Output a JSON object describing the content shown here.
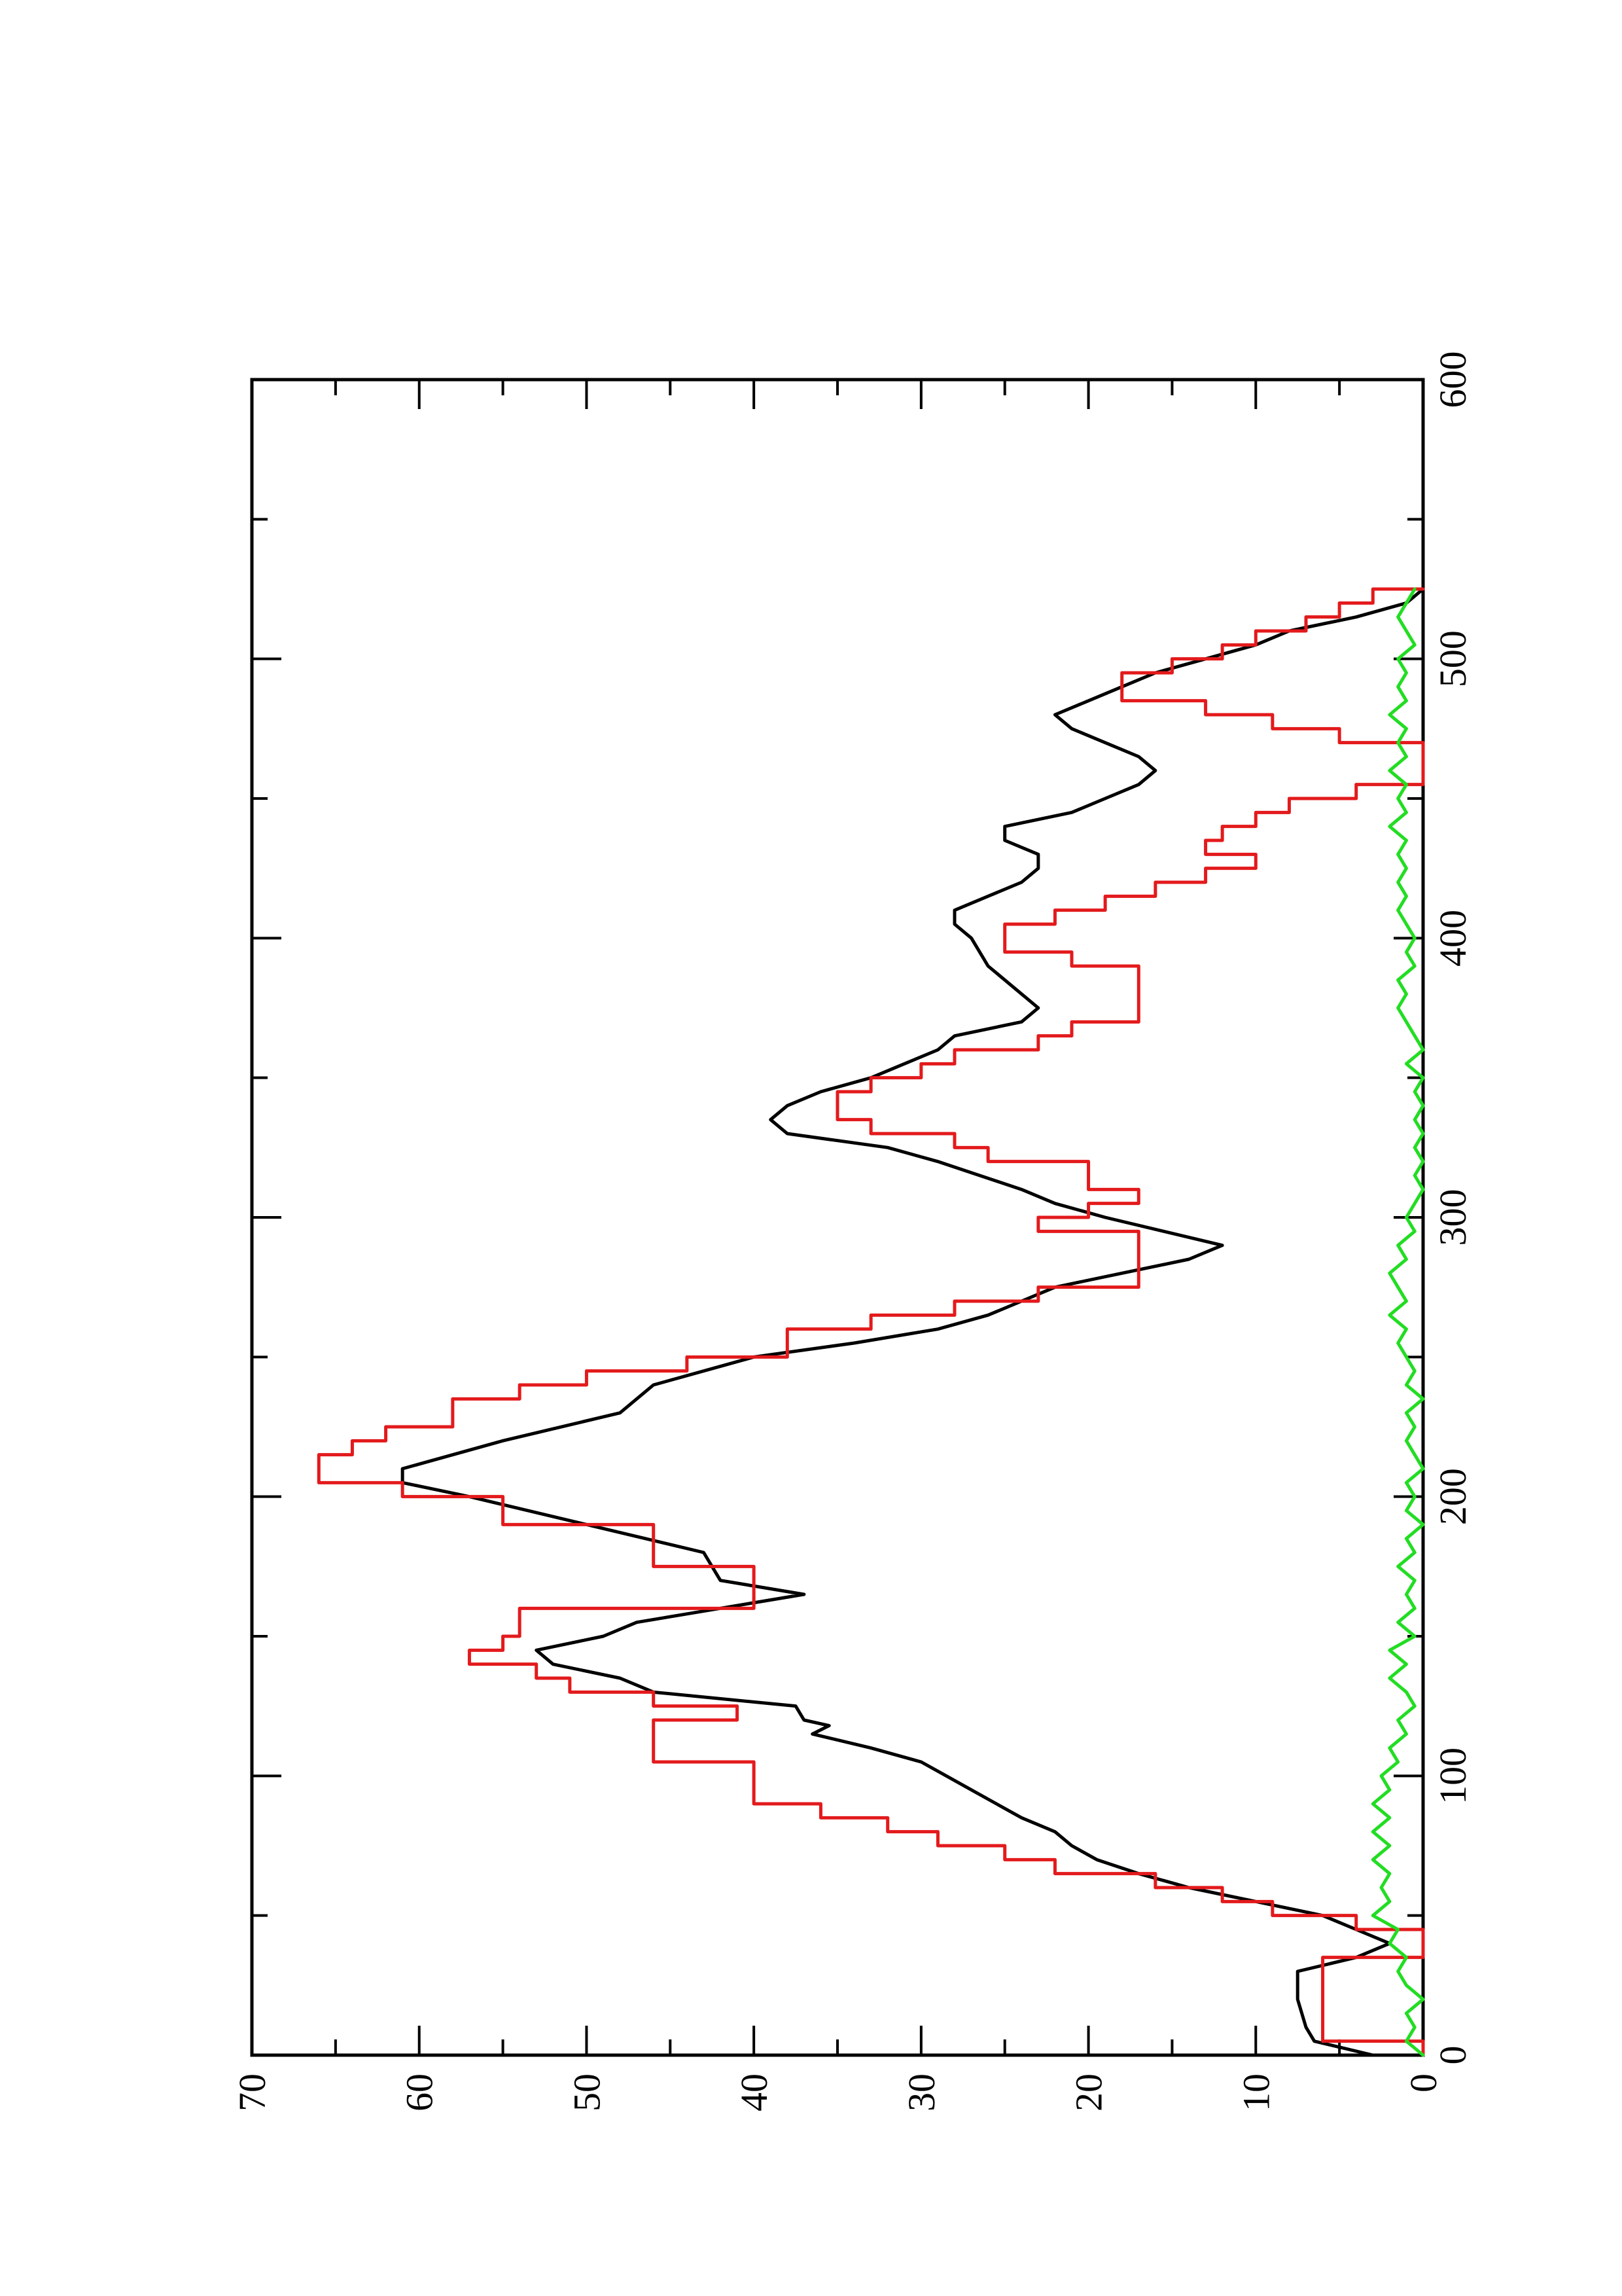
{
  "chart_data": {
    "type": "line",
    "title": "",
    "xlabel": "",
    "ylabel": "",
    "orientation": "rotated-90-ccw",
    "xlim": [
      0,
      600
    ],
    "ylim": [
      0,
      70
    ],
    "x_ticks": [
      "0",
      "100",
      "200",
      "300",
      "400",
      "500",
      "600"
    ],
    "y_ticks": [
      "0",
      "10",
      "20",
      "30",
      "40",
      "50",
      "60",
      "70"
    ],
    "grid": false,
    "legend": "none",
    "series": [
      {
        "color": "#000000",
        "style": "smooth",
        "points": [
          [
            0,
            3
          ],
          [
            5,
            6.5
          ],
          [
            10,
            7
          ],
          [
            20,
            7.5
          ],
          [
            30,
            7.5
          ],
          [
            35,
            4
          ],
          [
            40,
            2
          ],
          [
            45,
            4
          ],
          [
            50,
            6
          ],
          [
            55,
            10
          ],
          [
            60,
            14
          ],
          [
            65,
            17
          ],
          [
            70,
            19.5
          ],
          [
            75,
            21
          ],
          [
            80,
            22
          ],
          [
            85,
            24
          ],
          [
            90,
            25.5
          ],
          [
            95,
            27
          ],
          [
            100,
            28.5
          ],
          [
            105,
            30
          ],
          [
            110,
            33
          ],
          [
            115,
            36.5
          ],
          [
            118,
            35.5
          ],
          [
            120,
            37
          ],
          [
            125,
            37.5
          ],
          [
            130,
            46
          ],
          [
            135,
            48
          ],
          [
            140,
            52
          ],
          [
            145,
            53
          ],
          [
            150,
            49
          ],
          [
            155,
            47
          ],
          [
            160,
            42
          ],
          [
            165,
            37
          ],
          [
            170,
            42
          ],
          [
            180,
            43
          ],
          [
            190,
            50
          ],
          [
            200,
            57
          ],
          [
            205,
            61
          ],
          [
            210,
            61
          ],
          [
            215,
            58
          ],
          [
            220,
            55
          ],
          [
            230,
            48
          ],
          [
            240,
            46
          ],
          [
            250,
            40
          ],
          [
            255,
            34
          ],
          [
            260,
            29
          ],
          [
            265,
            26
          ],
          [
            270,
            24
          ],
          [
            275,
            22
          ],
          [
            280,
            18
          ],
          [
            285,
            14
          ],
          [
            290,
            12
          ],
          [
            300,
            19
          ],
          [
            305,
            22
          ],
          [
            310,
            24
          ],
          [
            320,
            29
          ],
          [
            325,
            32
          ],
          [
            330,
            38
          ],
          [
            335,
            39
          ],
          [
            340,
            38
          ],
          [
            345,
            36
          ],
          [
            350,
            33
          ],
          [
            355,
            31
          ],
          [
            360,
            29
          ],
          [
            365,
            28
          ],
          [
            370,
            24
          ],
          [
            375,
            23
          ],
          [
            380,
            24
          ],
          [
            385,
            25
          ],
          [
            390,
            26
          ],
          [
            400,
            27
          ],
          [
            405,
            28
          ],
          [
            410,
            28
          ],
          [
            415,
            26
          ],
          [
            420,
            24
          ],
          [
            425,
            23
          ],
          [
            430,
            23
          ],
          [
            435,
            25
          ],
          [
            440,
            25
          ],
          [
            445,
            21
          ],
          [
            450,
            19
          ],
          [
            455,
            17
          ],
          [
            460,
            16
          ],
          [
            465,
            17
          ],
          [
            470,
            19
          ],
          [
            475,
            21
          ],
          [
            480,
            22
          ],
          [
            485,
            20
          ],
          [
            490,
            18
          ],
          [
            495,
            16
          ],
          [
            500,
            13
          ],
          [
            505,
            10
          ],
          [
            510,
            8
          ],
          [
            515,
            4
          ],
          [
            520,
            1
          ],
          [
            525,
            0
          ]
        ]
      },
      {
        "color": "#e31a1c",
        "style": "step",
        "points": [
          [
            0,
            0
          ],
          [
            5,
            6
          ],
          [
            30,
            6
          ],
          [
            35,
            0
          ],
          [
            40,
            0
          ],
          [
            45,
            4
          ],
          [
            50,
            9
          ],
          [
            55,
            12
          ],
          [
            60,
            16
          ],
          [
            65,
            22
          ],
          [
            70,
            25
          ],
          [
            75,
            29
          ],
          [
            80,
            32
          ],
          [
            85,
            36
          ],
          [
            90,
            40
          ],
          [
            100,
            40
          ],
          [
            105,
            46
          ],
          [
            115,
            46
          ],
          [
            120,
            41
          ],
          [
            125,
            46
          ],
          [
            130,
            51
          ],
          [
            135,
            53
          ],
          [
            140,
            57
          ],
          [
            145,
            55
          ],
          [
            150,
            54
          ],
          [
            160,
            40
          ],
          [
            170,
            40
          ],
          [
            175,
            46
          ],
          [
            185,
            46
          ],
          [
            190,
            55
          ],
          [
            200,
            61
          ],
          [
            205,
            66
          ],
          [
            210,
            66
          ],
          [
            215,
            64
          ],
          [
            220,
            62
          ],
          [
            225,
            58
          ],
          [
            235,
            54
          ],
          [
            240,
            50
          ],
          [
            245,
            44
          ],
          [
            250,
            38
          ],
          [
            260,
            33
          ],
          [
            265,
            28
          ],
          [
            270,
            23
          ],
          [
            275,
            17
          ],
          [
            290,
            17
          ],
          [
            295,
            23
          ],
          [
            300,
            20
          ],
          [
            305,
            17
          ],
          [
            310,
            20
          ],
          [
            315,
            20
          ],
          [
            320,
            26
          ],
          [
            325,
            28
          ],
          [
            330,
            33
          ],
          [
            335,
            35
          ],
          [
            340,
            35
          ],
          [
            345,
            33
          ],
          [
            350,
            30
          ],
          [
            355,
            28
          ],
          [
            360,
            23
          ],
          [
            365,
            21
          ],
          [
            370,
            17
          ],
          [
            385,
            17
          ],
          [
            390,
            21
          ],
          [
            395,
            25
          ],
          [
            400,
            25
          ],
          [
            405,
            22
          ],
          [
            410,
            19
          ],
          [
            415,
            16
          ],
          [
            420,
            13
          ],
          [
            425,
            10
          ],
          [
            430,
            13
          ],
          [
            435,
            12
          ],
          [
            440,
            10
          ],
          [
            445,
            8
          ],
          [
            450,
            4
          ],
          [
            455,
            0
          ],
          [
            465,
            0
          ],
          [
            470,
            5
          ],
          [
            475,
            9
          ],
          [
            480,
            13
          ],
          [
            485,
            18
          ],
          [
            490,
            18
          ],
          [
            495,
            15
          ],
          [
            500,
            12
          ],
          [
            505,
            10
          ],
          [
            510,
            7
          ],
          [
            515,
            5
          ],
          [
            520,
            3
          ],
          [
            525,
            0
          ]
        ]
      },
      {
        "color": "#22dd22",
        "style": "noisy",
        "points": [
          [
            0,
            0
          ],
          [
            5,
            1
          ],
          [
            10,
            0.5
          ],
          [
            15,
            1
          ],
          [
            20,
            0
          ],
          [
            25,
            1
          ],
          [
            30,
            1.5
          ],
          [
            35,
            1
          ],
          [
            40,
            2
          ],
          [
            45,
            1.5
          ],
          [
            50,
            3
          ],
          [
            55,
            2
          ],
          [
            60,
            2.5
          ],
          [
            65,
            2
          ],
          [
            70,
            3
          ],
          [
            75,
            2
          ],
          [
            80,
            3
          ],
          [
            85,
            2
          ],
          [
            90,
            3
          ],
          [
            95,
            2
          ],
          [
            100,
            2.5
          ],
          [
            105,
            1.5
          ],
          [
            110,
            2
          ],
          [
            115,
            1
          ],
          [
            120,
            1.5
          ],
          [
            125,
            0.5
          ],
          [
            130,
            1
          ],
          [
            135,
            2
          ],
          [
            140,
            1
          ],
          [
            145,
            2
          ],
          [
            150,
            0.5
          ],
          [
            155,
            1.5
          ],
          [
            160,
            0.5
          ],
          [
            165,
            1
          ],
          [
            170,
            0.5
          ],
          [
            175,
            1.5
          ],
          [
            180,
            0.5
          ],
          [
            185,
            1
          ],
          [
            190,
            0
          ],
          [
            195,
            1
          ],
          [
            200,
            0.5
          ],
          [
            205,
            1
          ],
          [
            210,
            0
          ],
          [
            215,
            0.5
          ],
          [
            220,
            1
          ],
          [
            225,
            0.5
          ],
          [
            230,
            1
          ],
          [
            235,
            0
          ],
          [
            240,
            1
          ],
          [
            245,
            0.5
          ],
          [
            250,
            1
          ],
          [
            255,
            1.5
          ],
          [
            260,
            1
          ],
          [
            265,
            2
          ],
          [
            270,
            1
          ],
          [
            275,
            1.5
          ],
          [
            280,
            2
          ],
          [
            285,
            1
          ],
          [
            290,
            1.5
          ],
          [
            295,
            0.5
          ],
          [
            300,
            1
          ],
          [
            305,
            0.5
          ],
          [
            310,
            0
          ],
          [
            315,
            0.5
          ],
          [
            320,
            0
          ],
          [
            325,
            0.5
          ],
          [
            330,
            0
          ],
          [
            335,
            0.5
          ],
          [
            340,
            0
          ],
          [
            345,
            0.5
          ],
          [
            350,
            0
          ],
          [
            355,
            1
          ],
          [
            360,
            0
          ],
          [
            365,
            0.5
          ],
          [
            370,
            1
          ],
          [
            375,
            1.5
          ],
          [
            380,
            1
          ],
          [
            385,
            1.5
          ],
          [
            390,
            0.5
          ],
          [
            395,
            1
          ],
          [
            400,
            0.5
          ],
          [
            405,
            1
          ],
          [
            410,
            1.5
          ],
          [
            415,
            1
          ],
          [
            420,
            1.5
          ],
          [
            425,
            1
          ],
          [
            430,
            1.5
          ],
          [
            435,
            1
          ],
          [
            440,
            2
          ],
          [
            445,
            1
          ],
          [
            450,
            1.5
          ],
          [
            455,
            1
          ],
          [
            460,
            2
          ],
          [
            465,
            1
          ],
          [
            470,
            1.5
          ],
          [
            475,
            1
          ],
          [
            480,
            2
          ],
          [
            485,
            1
          ],
          [
            490,
            1.5
          ],
          [
            495,
            1
          ],
          [
            500,
            1.5
          ],
          [
            505,
            0.5
          ],
          [
            510,
            1
          ],
          [
            515,
            1.5
          ],
          [
            520,
            1
          ],
          [
            525,
            0.5
          ]
        ]
      }
    ]
  }
}
